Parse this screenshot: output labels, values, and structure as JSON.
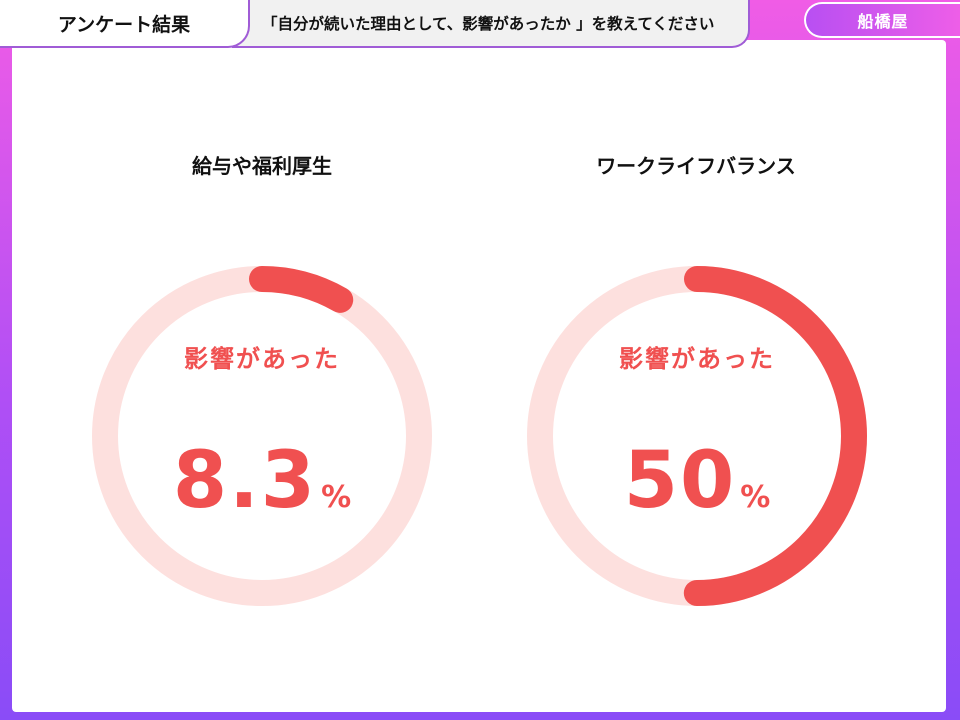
{
  "header": {
    "section_tab": "アンケート結果",
    "question": "「自分が続いた理由として、影響があったか 」を教えてください",
    "company": "船橋屋"
  },
  "colors": {
    "track": "#fde0de",
    "progress": "#f05050",
    "text_accent": "#f05050"
  },
  "chart_data": [
    {
      "type": "pie",
      "title": "給与や福利厚生",
      "center_label": "影響があった",
      "value": 8.3,
      "value_text": "8.3",
      "unit": "%"
    },
    {
      "type": "pie",
      "title": "ワークライフバランス",
      "center_label": "影響があった",
      "value": 50,
      "value_text": "50",
      "unit": "%"
    }
  ]
}
